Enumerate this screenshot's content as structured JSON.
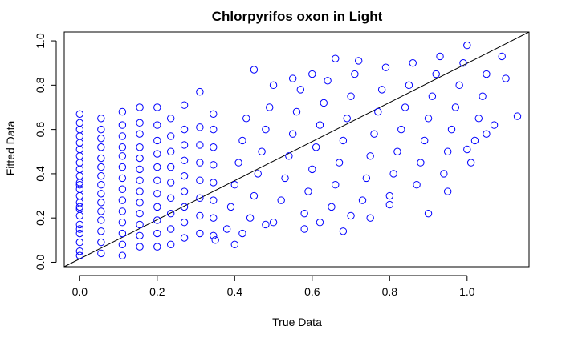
{
  "chart_data": {
    "type": "scatter",
    "title": "Chlorpyrifos oxon in Light",
    "xlabel": "True Data",
    "ylabel": "Fitted Data",
    "xlim": [
      -0.04,
      1.16
    ],
    "ylim": [
      -0.02,
      1.04
    ],
    "xticks": [
      "0.0",
      "0.2",
      "0.4",
      "0.6",
      "0.8",
      "1.0"
    ],
    "yticks": [
      "0.0",
      "0.2",
      "0.4",
      "0.6",
      "0.8",
      "1.0"
    ],
    "grid": false,
    "legend": "none",
    "marker": "open-circle",
    "point_color": "#0000ff",
    "reference_line": {
      "type": "identity",
      "slope": 1,
      "intercept": 0,
      "color": "#000000"
    },
    "discrete_x_columns": [
      0.0,
      0.055,
      0.11,
      0.155,
      0.2,
      0.235,
      0.27,
      0.31,
      0.345
    ],
    "points": [
      [
        0.0,
        0.05
      ],
      [
        0.0,
        0.09
      ],
      [
        0.0,
        0.13
      ],
      [
        0.0,
        0.17
      ],
      [
        0.0,
        0.21
      ],
      [
        0.0,
        0.24
      ],
      [
        0.0,
        0.27
      ],
      [
        0.0,
        0.3
      ],
      [
        0.0,
        0.33
      ],
      [
        0.0,
        0.36
      ],
      [
        0.0,
        0.39
      ],
      [
        0.0,
        0.42
      ],
      [
        0.0,
        0.45
      ],
      [
        0.0,
        0.48
      ],
      [
        0.0,
        0.51
      ],
      [
        0.0,
        0.54
      ],
      [
        0.0,
        0.57
      ],
      [
        0.0,
        0.6
      ],
      [
        0.0,
        0.63
      ],
      [
        0.0,
        0.67
      ],
      [
        0.0,
        0.03
      ],
      [
        0.0,
        0.15
      ],
      [
        0.0,
        0.25
      ],
      [
        0.0,
        0.35
      ],
      [
        0.055,
        0.04
      ],
      [
        0.055,
        0.09
      ],
      [
        0.055,
        0.14
      ],
      [
        0.055,
        0.19
      ],
      [
        0.055,
        0.23
      ],
      [
        0.055,
        0.27
      ],
      [
        0.055,
        0.31
      ],
      [
        0.055,
        0.35
      ],
      [
        0.055,
        0.39
      ],
      [
        0.055,
        0.43
      ],
      [
        0.055,
        0.47
      ],
      [
        0.055,
        0.52
      ],
      [
        0.055,
        0.56
      ],
      [
        0.055,
        0.6
      ],
      [
        0.055,
        0.65
      ],
      [
        0.11,
        0.03
      ],
      [
        0.11,
        0.08
      ],
      [
        0.11,
        0.13
      ],
      [
        0.11,
        0.18
      ],
      [
        0.11,
        0.23
      ],
      [
        0.11,
        0.28
      ],
      [
        0.11,
        0.33
      ],
      [
        0.11,
        0.38
      ],
      [
        0.11,
        0.43
      ],
      [
        0.11,
        0.48
      ],
      [
        0.11,
        0.52
      ],
      [
        0.11,
        0.57
      ],
      [
        0.11,
        0.62
      ],
      [
        0.11,
        0.68
      ],
      [
        0.155,
        0.07
      ],
      [
        0.155,
        0.12
      ],
      [
        0.155,
        0.17
      ],
      [
        0.155,
        0.22
      ],
      [
        0.155,
        0.27
      ],
      [
        0.155,
        0.32
      ],
      [
        0.155,
        0.37
      ],
      [
        0.155,
        0.42
      ],
      [
        0.155,
        0.47
      ],
      [
        0.155,
        0.52
      ],
      [
        0.155,
        0.58
      ],
      [
        0.155,
        0.63
      ],
      [
        0.155,
        0.7
      ],
      [
        0.2,
        0.07
      ],
      [
        0.2,
        0.13
      ],
      [
        0.2,
        0.19
      ],
      [
        0.2,
        0.25
      ],
      [
        0.2,
        0.31
      ],
      [
        0.2,
        0.37
      ],
      [
        0.2,
        0.43
      ],
      [
        0.2,
        0.49
      ],
      [
        0.2,
        0.55
      ],
      [
        0.2,
        0.62
      ],
      [
        0.2,
        0.7
      ],
      [
        0.235,
        0.08
      ],
      [
        0.235,
        0.15
      ],
      [
        0.235,
        0.22
      ],
      [
        0.235,
        0.29
      ],
      [
        0.235,
        0.36
      ],
      [
        0.235,
        0.43
      ],
      [
        0.235,
        0.5
      ],
      [
        0.235,
        0.57
      ],
      [
        0.235,
        0.65
      ],
      [
        0.27,
        0.11
      ],
      [
        0.27,
        0.18
      ],
      [
        0.27,
        0.25
      ],
      [
        0.27,
        0.32
      ],
      [
        0.27,
        0.39
      ],
      [
        0.27,
        0.46
      ],
      [
        0.27,
        0.53
      ],
      [
        0.27,
        0.6
      ],
      [
        0.27,
        0.71
      ],
      [
        0.31,
        0.13
      ],
      [
        0.31,
        0.21
      ],
      [
        0.31,
        0.29
      ],
      [
        0.31,
        0.37
      ],
      [
        0.31,
        0.45
      ],
      [
        0.31,
        0.53
      ],
      [
        0.31,
        0.61
      ],
      [
        0.31,
        0.77
      ],
      [
        0.345,
        0.12
      ],
      [
        0.345,
        0.2
      ],
      [
        0.345,
        0.28
      ],
      [
        0.345,
        0.36
      ],
      [
        0.345,
        0.44
      ],
      [
        0.345,
        0.52
      ],
      [
        0.345,
        0.6
      ],
      [
        0.345,
        0.67
      ],
      [
        0.38,
        0.15
      ],
      [
        0.39,
        0.25
      ],
      [
        0.4,
        0.35
      ],
      [
        0.41,
        0.45
      ],
      [
        0.42,
        0.55
      ],
      [
        0.43,
        0.65
      ],
      [
        0.44,
        0.2
      ],
      [
        0.45,
        0.3
      ],
      [
        0.46,
        0.4
      ],
      [
        0.47,
        0.5
      ],
      [
        0.48,
        0.6
      ],
      [
        0.49,
        0.7
      ],
      [
        0.45,
        0.87
      ],
      [
        0.5,
        0.18
      ],
      [
        0.52,
        0.28
      ],
      [
        0.53,
        0.38
      ],
      [
        0.54,
        0.48
      ],
      [
        0.55,
        0.58
      ],
      [
        0.56,
        0.68
      ],
      [
        0.57,
        0.78
      ],
      [
        0.58,
        0.22
      ],
      [
        0.59,
        0.32
      ],
      [
        0.6,
        0.42
      ],
      [
        0.61,
        0.52
      ],
      [
        0.62,
        0.62
      ],
      [
        0.63,
        0.72
      ],
      [
        0.64,
        0.82
      ],
      [
        0.65,
        0.25
      ],
      [
        0.66,
        0.35
      ],
      [
        0.67,
        0.45
      ],
      [
        0.68,
        0.55
      ],
      [
        0.69,
        0.65
      ],
      [
        0.7,
        0.75
      ],
      [
        0.71,
        0.85
      ],
      [
        0.72,
        0.91
      ],
      [
        0.73,
        0.28
      ],
      [
        0.74,
        0.38
      ],
      [
        0.75,
        0.48
      ],
      [
        0.76,
        0.58
      ],
      [
        0.77,
        0.68
      ],
      [
        0.78,
        0.78
      ],
      [
        0.79,
        0.88
      ],
      [
        0.8,
        0.3
      ],
      [
        0.81,
        0.4
      ],
      [
        0.82,
        0.5
      ],
      [
        0.83,
        0.6
      ],
      [
        0.84,
        0.7
      ],
      [
        0.85,
        0.8
      ],
      [
        0.86,
        0.9
      ],
      [
        0.87,
        0.35
      ],
      [
        0.88,
        0.45
      ],
      [
        0.89,
        0.55
      ],
      [
        0.9,
        0.65
      ],
      [
        0.91,
        0.75
      ],
      [
        0.92,
        0.85
      ],
      [
        0.93,
        0.93
      ],
      [
        0.94,
        0.4
      ],
      [
        0.95,
        0.5
      ],
      [
        0.96,
        0.6
      ],
      [
        0.97,
        0.7
      ],
      [
        0.98,
        0.8
      ],
      [
        0.99,
        0.9
      ],
      [
        1.0,
        0.98
      ],
      [
        1.01,
        0.45
      ],
      [
        1.02,
        0.55
      ],
      [
        1.03,
        0.65
      ],
      [
        1.04,
        0.75
      ],
      [
        1.05,
        0.85
      ],
      [
        1.07,
        0.62
      ],
      [
        1.09,
        0.93
      ],
      [
        1.1,
        0.83
      ],
      [
        1.13,
        0.66
      ],
      [
        0.9,
        0.22
      ],
      [
        0.95,
        0.32
      ],
      [
        1.0,
        0.51
      ],
      [
        1.05,
        0.58
      ],
      [
        0.6,
        0.85
      ],
      [
        0.66,
        0.92
      ],
      [
        0.35,
        0.1
      ],
      [
        0.4,
        0.08
      ],
      [
        0.42,
        0.13
      ],
      [
        0.68,
        0.14
      ],
      [
        0.75,
        0.2
      ],
      [
        0.8,
        0.26
      ],
      [
        0.5,
        0.8
      ],
      [
        0.55,
        0.83
      ],
      [
        0.48,
        0.17
      ],
      [
        0.58,
        0.15
      ],
      [
        0.62,
        0.18
      ],
      [
        0.7,
        0.21
      ]
    ]
  }
}
